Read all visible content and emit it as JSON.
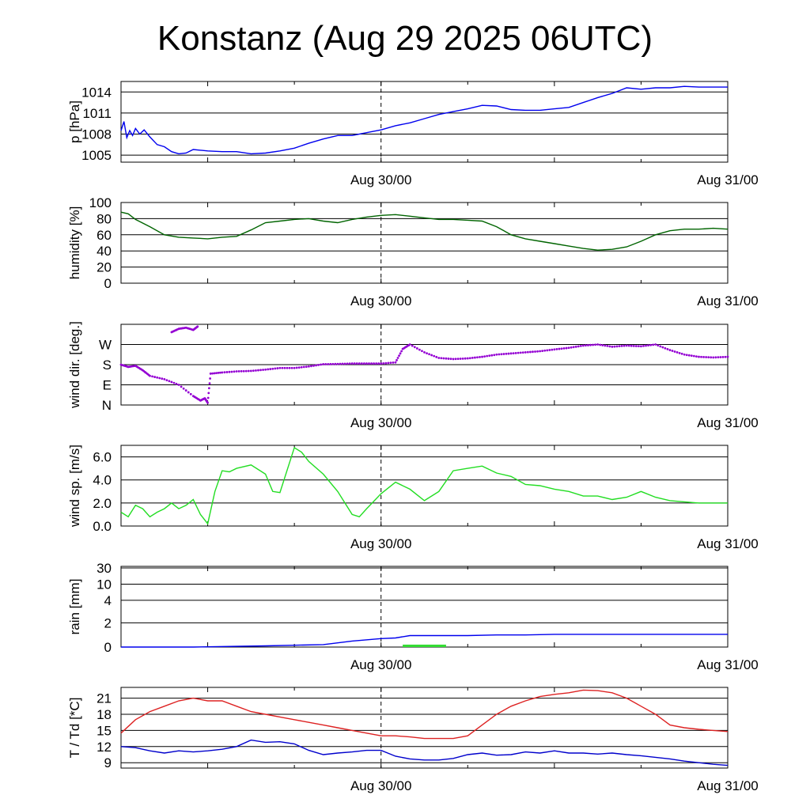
{
  "title": "Konstanz (Aug 29 2025 06UTC)",
  "colors": {
    "pressure": "#0000ee",
    "humidity": "#006400",
    "wind_dir": "#9400d3",
    "wind_speed": "#22dd22",
    "rain_cum": "#0000ee",
    "rain_bar": "#33dd33",
    "temperature": "#dd2222",
    "dewpoint": "#0000cc",
    "grid": "#000000"
  },
  "chart_data": [
    {
      "type": "line",
      "id": "pressure",
      "ylabel": "p [hPa]",
      "x_ticks": [
        "Aug 30/00",
        "Aug 31/00"
      ],
      "y_ticks": [
        "1005",
        "1008",
        "1011",
        "1014"
      ],
      "ylim": [
        1004,
        1015.5
      ],
      "xlim": [
        0,
        42
      ],
      "series": [
        {
          "color": "pressure",
          "x": [
            0,
            0.2,
            0.4,
            0.6,
            0.8,
            1,
            1.3,
            1.6,
            2,
            2.5,
            3,
            3.5,
            4,
            4.5,
            5,
            5.5,
            6,
            7,
            8,
            9,
            10,
            11,
            12,
            13,
            14,
            15,
            16,
            17,
            18,
            19,
            20,
            21,
            22,
            23,
            24,
            25,
            26,
            27,
            28,
            29,
            30,
            31,
            32,
            33,
            34,
            35,
            36,
            37,
            38,
            39,
            40,
            41,
            42
          ],
          "values": [
            1008.5,
            1009.8,
            1007.5,
            1008.5,
            1007.8,
            1008.8,
            1008,
            1008.6,
            1007.6,
            1006.5,
            1006.2,
            1005.5,
            1005.2,
            1005.3,
            1005.8,
            1005.7,
            1005.6,
            1005.5,
            1005.5,
            1005.2,
            1005.3,
            1005.6,
            1006,
            1006.7,
            1007.3,
            1007.8,
            1007.8,
            1008.2,
            1008.6,
            1009.2,
            1009.6,
            1010.2,
            1010.8,
            1011.2,
            1011.6,
            1012.1,
            1012,
            1011.5,
            1011.4,
            1011.4,
            1011.6,
            1011.8,
            1012.5,
            1013.2,
            1013.8,
            1014.6,
            1014.4,
            1014.6,
            1014.6,
            1014.8,
            1014.7,
            1014.7,
            1014.7
          ]
        }
      ]
    },
    {
      "type": "line",
      "id": "humidity",
      "ylabel": "humidity [%]",
      "x_ticks": [
        "Aug 30/00",
        "Aug 31/00"
      ],
      "y_ticks": [
        "0",
        "20",
        "40",
        "60",
        "80",
        "100"
      ],
      "ylim": [
        0,
        100
      ],
      "xlim": [
        0,
        42
      ],
      "series": [
        {
          "color": "humidity",
          "x": [
            0,
            0.5,
            1,
            2,
            3,
            4,
            5,
            6,
            7,
            8,
            9,
            10,
            11,
            12,
            13,
            14,
            15,
            16,
            17,
            18,
            19,
            20,
            21,
            22,
            23,
            24,
            25,
            26,
            27,
            28,
            29,
            30,
            31,
            32,
            33,
            34,
            35,
            36,
            37,
            38,
            39,
            40,
            41,
            42
          ],
          "values": [
            88,
            86,
            79,
            70,
            60,
            57,
            56,
            55,
            57,
            58,
            66,
            75,
            77,
            79,
            80,
            77,
            75,
            79,
            82,
            84,
            85,
            83,
            81,
            79,
            79,
            78,
            77,
            70,
            60,
            55,
            52,
            49,
            46,
            43,
            41,
            42,
            45,
            52,
            60,
            65,
            67,
            67,
            68,
            67
          ]
        }
      ]
    },
    {
      "type": "scatter",
      "id": "wind_dir",
      "ylabel": "wind dir. [deg.]",
      "x_ticks": [
        "Aug 30/00",
        "Aug 31/00"
      ],
      "y_ticks": [
        "N",
        "E",
        "S",
        "W"
      ],
      "y_tick_values": [
        0,
        90,
        180,
        270
      ],
      "ylim": [
        0,
        360
      ],
      "xlim": [
        0,
        42
      ],
      "series": [
        {
          "color": "wind_dir",
          "x": [
            0,
            0.5,
            1,
            1.5,
            2,
            3,
            4,
            5,
            5.5,
            5.8,
            6,
            6.2,
            7,
            8,
            9,
            10,
            11,
            12,
            13,
            14,
            15,
            16,
            17,
            18,
            19,
            19.5,
            20,
            21,
            22,
            23,
            24,
            25,
            26,
            27,
            28,
            29,
            30,
            31,
            32,
            33,
            34,
            35,
            36,
            37,
            38,
            39,
            40,
            41,
            42
          ],
          "values": [
            180,
            170,
            175,
            155,
            130,
            115,
            90,
            40,
            20,
            30,
            10,
            140,
            145,
            150,
            152,
            158,
            165,
            165,
            172,
            182,
            183,
            185,
            185,
            185,
            190,
            250,
            270,
            235,
            210,
            205,
            208,
            215,
            225,
            230,
            235,
            240,
            248,
            255,
            265,
            270,
            260,
            265,
            262,
            270,
            245,
            225,
            215,
            212,
            215
          ]
        },
        {
          "color": "wind_dir",
          "x": [
            3.5,
            4,
            4.5,
            5,
            5.3
          ],
          "values": [
            325,
            340,
            345,
            335,
            350
          ]
        }
      ]
    },
    {
      "type": "line",
      "id": "wind_speed",
      "ylabel": "wind sp. [m/s]",
      "x_ticks": [
        "Aug 30/00",
        "Aug 31/00"
      ],
      "y_ticks": [
        "0.0",
        "2.0",
        "4.0",
        "6.0"
      ],
      "y_tick_values": [
        0,
        2,
        4,
        6
      ],
      "ylim": [
        0,
        7
      ],
      "xlim": [
        0,
        42
      ],
      "series": [
        {
          "color": "wind_speed",
          "x": [
            0,
            0.5,
            1,
            1.5,
            2,
            2.5,
            3,
            3.5,
            4,
            4.5,
            5,
            5.5,
            6,
            6.5,
            7,
            7.5,
            8,
            9,
            10,
            10.5,
            11,
            12,
            12.5,
            13,
            14,
            15,
            16,
            16.5,
            17,
            18,
            19,
            20,
            21,
            22,
            23,
            24,
            25,
            26,
            27,
            28,
            29,
            30,
            31,
            32,
            33,
            34,
            35,
            36,
            37,
            38,
            39,
            40,
            41,
            42
          ],
          "values": [
            1.2,
            0.8,
            1.8,
            1.5,
            0.8,
            1.2,
            1.5,
            2.0,
            1.5,
            1.8,
            2.3,
            1.0,
            0.2,
            3.0,
            4.8,
            4.7,
            5.0,
            5.3,
            4.5,
            3.0,
            2.9,
            6.8,
            6.4,
            5.6,
            4.5,
            3.0,
            1.0,
            0.8,
            1.5,
            2.8,
            3.8,
            3.2,
            2.2,
            3.0,
            4.8,
            5.0,
            5.2,
            4.6,
            4.3,
            3.6,
            3.5,
            3.2,
            3.0,
            2.6,
            2.6,
            2.3,
            2.5,
            3.0,
            2.5,
            2.2,
            2.1,
            2.0,
            2.0,
            2.0
          ]
        }
      ]
    },
    {
      "type": "line",
      "id": "rain",
      "ylabel": "rain [mm]",
      "x_ticks": [
        "Aug 30/00",
        "Aug 31/00"
      ],
      "y_ticks": [
        "0",
        "2",
        "4",
        "10",
        "30"
      ],
      "y_tick_values": [
        0,
        2,
        4,
        10,
        30
      ],
      "ylim": [
        0,
        30
      ],
      "xlim": [
        0,
        42
      ],
      "series": [
        {
          "color": "rain_cum",
          "x": [
            0,
            5,
            10,
            12,
            14,
            16,
            18,
            19,
            20,
            22,
            24,
            26,
            28,
            30,
            32,
            34,
            36,
            38,
            40,
            42
          ],
          "values": [
            0,
            0,
            0.1,
            0.15,
            0.2,
            0.5,
            0.7,
            0.75,
            0.95,
            0.95,
            0.95,
            1.0,
            1.0,
            1.05,
            1.05,
            1.05,
            1.05,
            1.05,
            1.05,
            1.05
          ]
        }
      ],
      "bars": [
        {
          "color": "rain_bar",
          "x_start": 19.5,
          "x_end": 22.5,
          "value": 0.2
        }
      ]
    },
    {
      "type": "line",
      "id": "temp_dew",
      "ylabel": "T / Td [*C]",
      "x_ticks": [
        "Aug 30/00",
        "Aug 31/00"
      ],
      "y_ticks": [
        "9",
        "12",
        "15",
        "18",
        "21"
      ],
      "y_tick_values": [
        9,
        12,
        15,
        18,
        21
      ],
      "ylim": [
        8,
        23
      ],
      "xlim": [
        0,
        42
      ],
      "series": [
        {
          "color": "temperature",
          "x": [
            0,
            1,
            2,
            3,
            4,
            5,
            6,
            7,
            8,
            9,
            10,
            11,
            12,
            13,
            14,
            15,
            16,
            17,
            18,
            19,
            20,
            21,
            22,
            23,
            24,
            25,
            26,
            27,
            28,
            29,
            30,
            31,
            32,
            33,
            34,
            35,
            36,
            37,
            38,
            39,
            40,
            41,
            42
          ],
          "values": [
            14.5,
            17,
            18.5,
            19.5,
            20.5,
            21,
            20.5,
            20.5,
            19.5,
            18.5,
            18,
            17.5,
            17,
            16.5,
            16,
            15.5,
            15,
            14.5,
            14,
            14,
            13.8,
            13.5,
            13.5,
            13.5,
            14,
            16,
            18,
            19.5,
            20.5,
            21.3,
            21.7,
            22,
            22.5,
            22.4,
            22,
            21,
            19.5,
            18,
            16,
            15.5,
            15.2,
            15,
            14.8
          ]
        },
        {
          "color": "dewpoint",
          "x": [
            0,
            1,
            2,
            3,
            4,
            5,
            6,
            7,
            8,
            9,
            10,
            11,
            12,
            13,
            14,
            15,
            16,
            17,
            18,
            19,
            20,
            21,
            22,
            23,
            24,
            25,
            26,
            27,
            28,
            29,
            30,
            31,
            32,
            33,
            34,
            35,
            36,
            37,
            38,
            39,
            40,
            41,
            42
          ],
          "values": [
            12,
            11.8,
            11.2,
            10.8,
            11.2,
            11,
            11.2,
            11.5,
            12,
            13.2,
            12.8,
            12.9,
            12.5,
            11.3,
            10.5,
            10.8,
            11,
            11.3,
            11.3,
            10.2,
            9.7,
            9.5,
            9.5,
            9.8,
            10.5,
            10.8,
            10.4,
            10.5,
            11,
            10.8,
            11.2,
            10.8,
            10.8,
            10.6,
            10.8,
            10.5,
            10.3,
            10,
            9.7,
            9.3,
            9,
            8.7,
            8.5
          ]
        }
      ]
    }
  ]
}
